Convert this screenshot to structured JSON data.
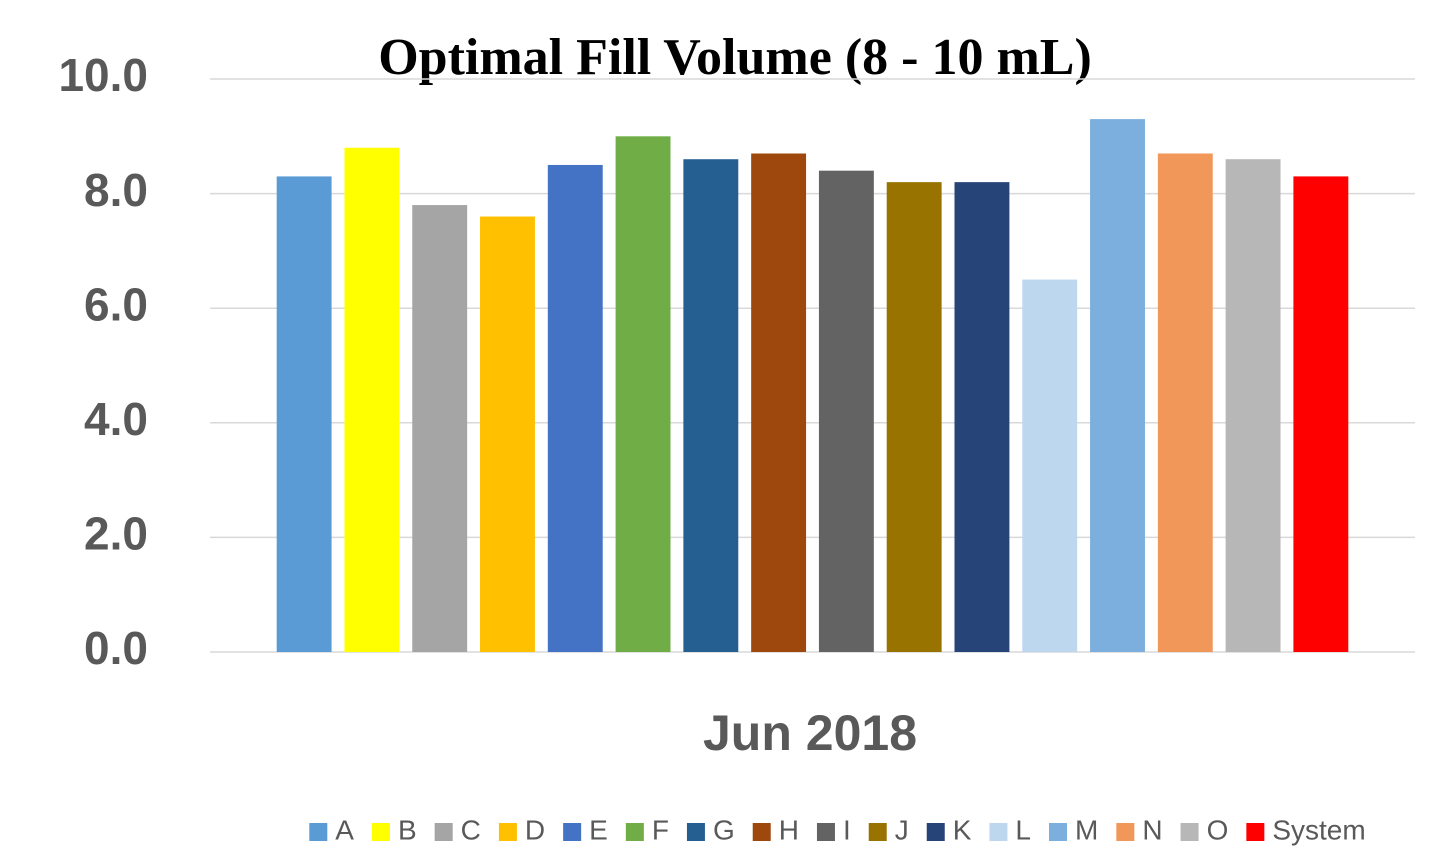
{
  "chart_data": {
    "type": "bar",
    "title": "Optimal Fill Volume (8 - 10 mL)",
    "x_label": "Jun 2018",
    "categories": [
      "Jun 2018"
    ],
    "series": [
      {
        "name": "A",
        "color": "#5b9bd5",
        "values": [
          8.3
        ]
      },
      {
        "name": "B",
        "color": "#ffff00",
        "values": [
          8.8
        ]
      },
      {
        "name": "C",
        "color": "#a5a5a5",
        "values": [
          7.8
        ]
      },
      {
        "name": "D",
        "color": "#ffc000",
        "values": [
          7.6
        ]
      },
      {
        "name": "E",
        "color": "#4472c4",
        "values": [
          8.5
        ]
      },
      {
        "name": "F",
        "color": "#70ad47",
        "values": [
          9.0
        ]
      },
      {
        "name": "G",
        "color": "#255e91",
        "values": [
          8.6
        ]
      },
      {
        "name": "H",
        "color": "#9e480e",
        "values": [
          8.7
        ]
      },
      {
        "name": "I",
        "color": "#636363",
        "values": [
          8.4
        ]
      },
      {
        "name": "J",
        "color": "#997300",
        "values": [
          8.2
        ]
      },
      {
        "name": "K",
        "color": "#264478",
        "values": [
          8.2
        ]
      },
      {
        "name": "L",
        "color": "#bdd7ee",
        "values": [
          6.5
        ]
      },
      {
        "name": "M",
        "color": "#7cafdd",
        "values": [
          9.3
        ]
      },
      {
        "name": "N",
        "color": "#f1975a",
        "values": [
          8.7
        ]
      },
      {
        "name": "O",
        "color": "#b7b7b7",
        "values": [
          8.6
        ]
      },
      {
        "name": "System",
        "color": "#ff0000",
        "values": [
          8.3
        ]
      }
    ],
    "ylim": [
      0,
      10
    ],
    "yticks": [
      {
        "value": 0,
        "label": "0.0"
      },
      {
        "value": 2,
        "label": "2.0"
      },
      {
        "value": 4,
        "label": "4.0"
      },
      {
        "value": 6,
        "label": "6.0"
      },
      {
        "value": 8,
        "label": "8.0"
      },
      {
        "value": 10,
        "label": "10.0"
      }
    ],
    "grid": true,
    "legend": "bottom"
  }
}
